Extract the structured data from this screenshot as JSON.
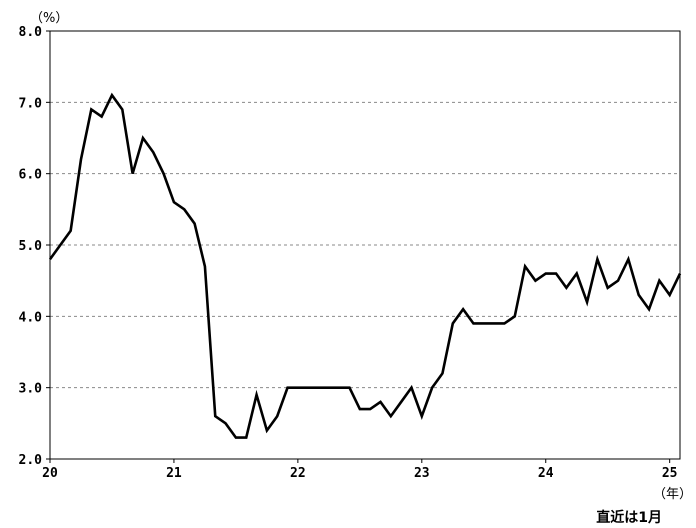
{
  "chart_data": {
    "type": "line",
    "ylabel": "（%）",
    "xlabel": "（年）",
    "note": "直近は1月",
    "ylim": [
      2.0,
      8.0
    ],
    "xlim": [
      20,
      25
    ],
    "grid": "horizontal-dashed",
    "yticks": [
      "2.0",
      "3.0",
      "4.0",
      "5.0",
      "6.0",
      "7.0",
      "8.0"
    ],
    "xticks": [
      "20",
      "21",
      "22",
      "23",
      "24",
      "25"
    ],
    "series": [
      {
        "color": "#000000",
        "values": [
          4.8,
          5.0,
          5.2,
          6.2,
          6.9,
          6.8,
          7.1,
          6.9,
          6.0,
          6.5,
          6.3,
          6.0,
          5.6,
          5.5,
          5.3,
          4.7,
          2.6,
          2.5,
          2.3,
          2.3,
          2.9,
          2.4,
          2.6,
          3.0,
          3.0,
          3.0,
          3.0,
          3.0,
          3.0,
          3.0,
          2.7,
          2.7,
          2.8,
          2.6,
          2.8,
          3.0,
          2.6,
          3.0,
          3.2,
          3.9,
          4.1,
          3.9,
          3.9,
          3.9,
          3.9,
          4.0,
          4.7,
          4.5,
          4.6,
          4.6,
          4.4,
          4.6,
          4.2,
          4.8,
          4.4,
          4.5,
          4.8,
          4.3,
          4.1,
          4.5,
          4.3,
          4.6
        ]
      }
    ]
  }
}
